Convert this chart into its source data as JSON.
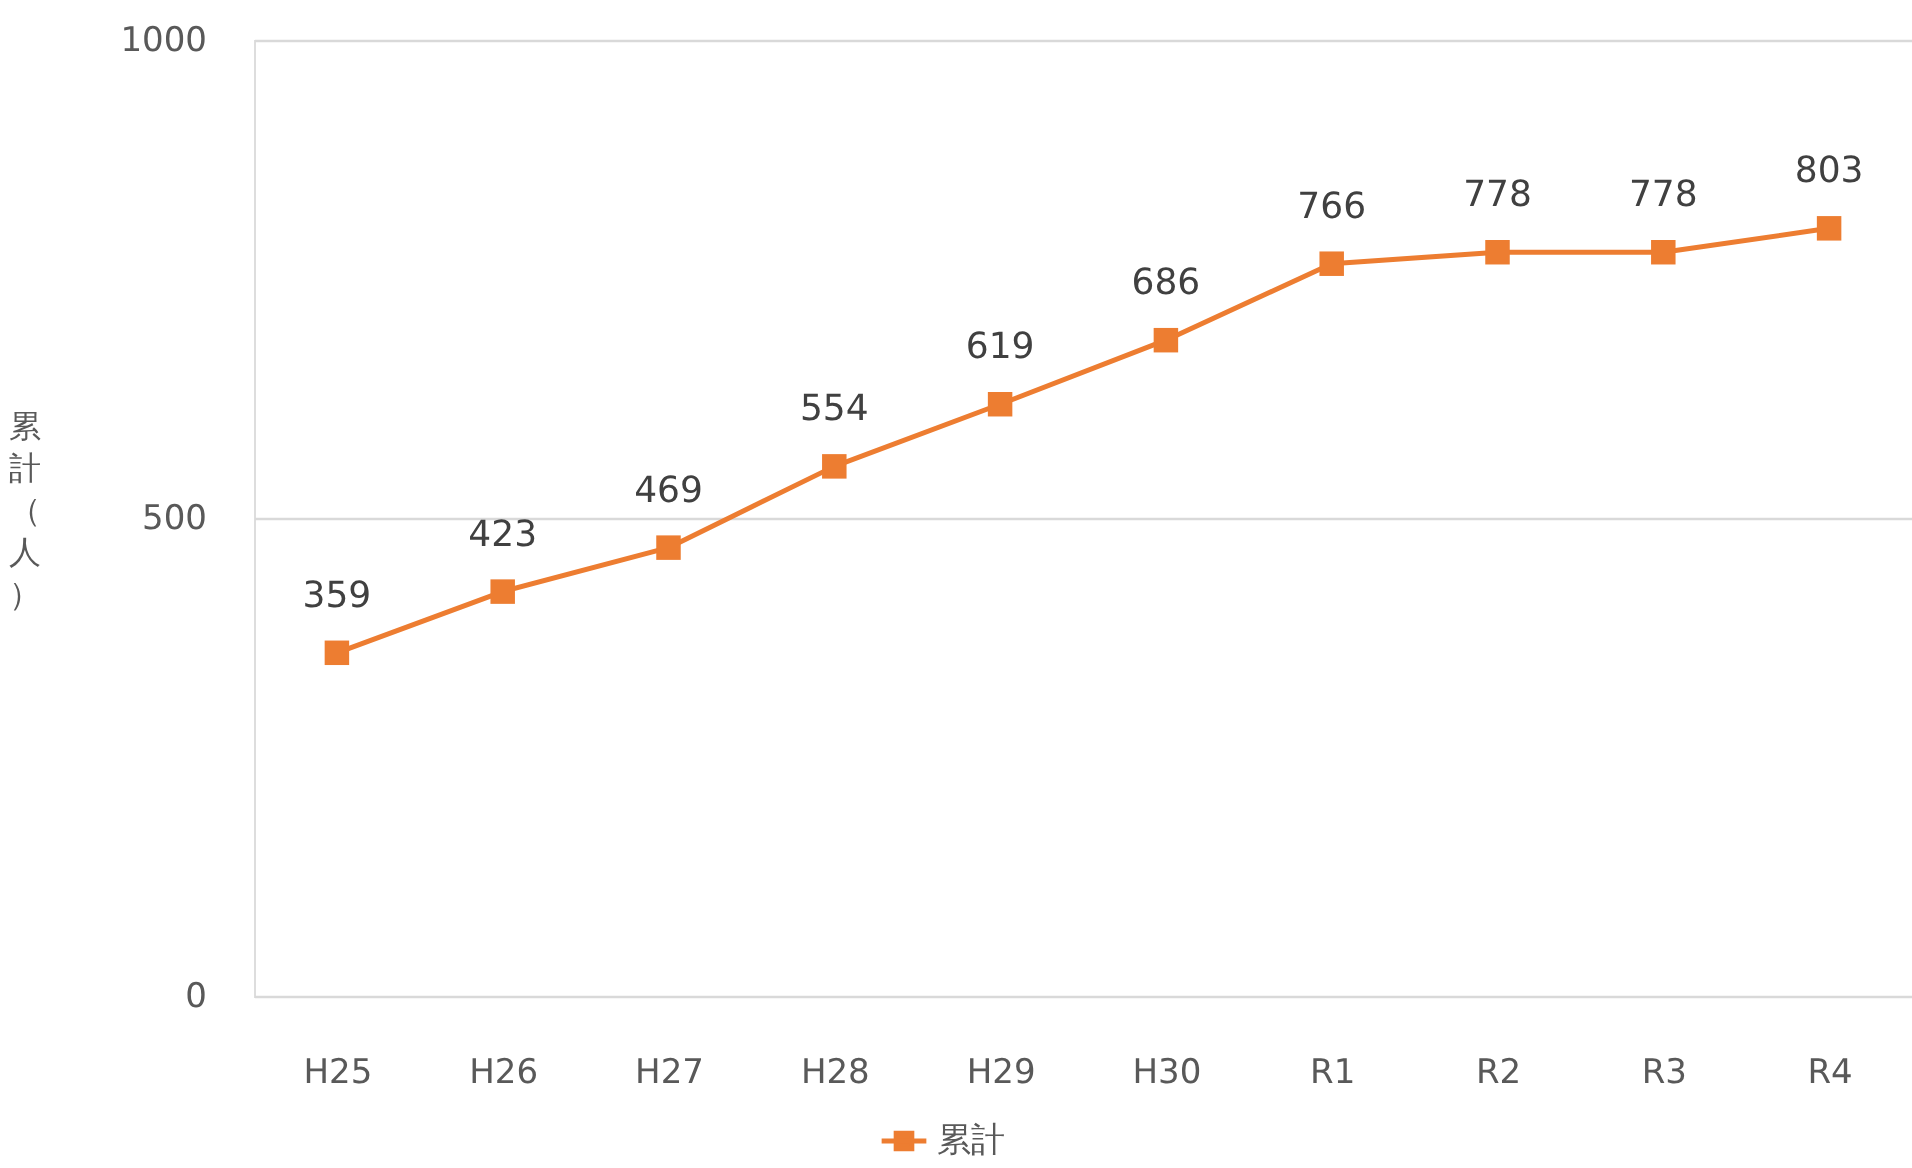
{
  "chart_data": {
    "type": "line",
    "categories": [
      "H25",
      "H26",
      "H27",
      "H28",
      "H29",
      "H30",
      "R1",
      "R2",
      "R3",
      "R4"
    ],
    "series": [
      {
        "name": "累計",
        "color": "#ed7d31",
        "values": [
          359,
          423,
          469,
          554,
          619,
          686,
          766,
          778,
          778,
          803
        ]
      }
    ],
    "ylabel": "累計（人）",
    "ylim": [
      0,
      1000
    ],
    "yticks": [
      0,
      500,
      1000
    ],
    "grid": "y",
    "legend": "bottom",
    "marker": "square",
    "line_style": "solid",
    "data_labels": true
  }
}
